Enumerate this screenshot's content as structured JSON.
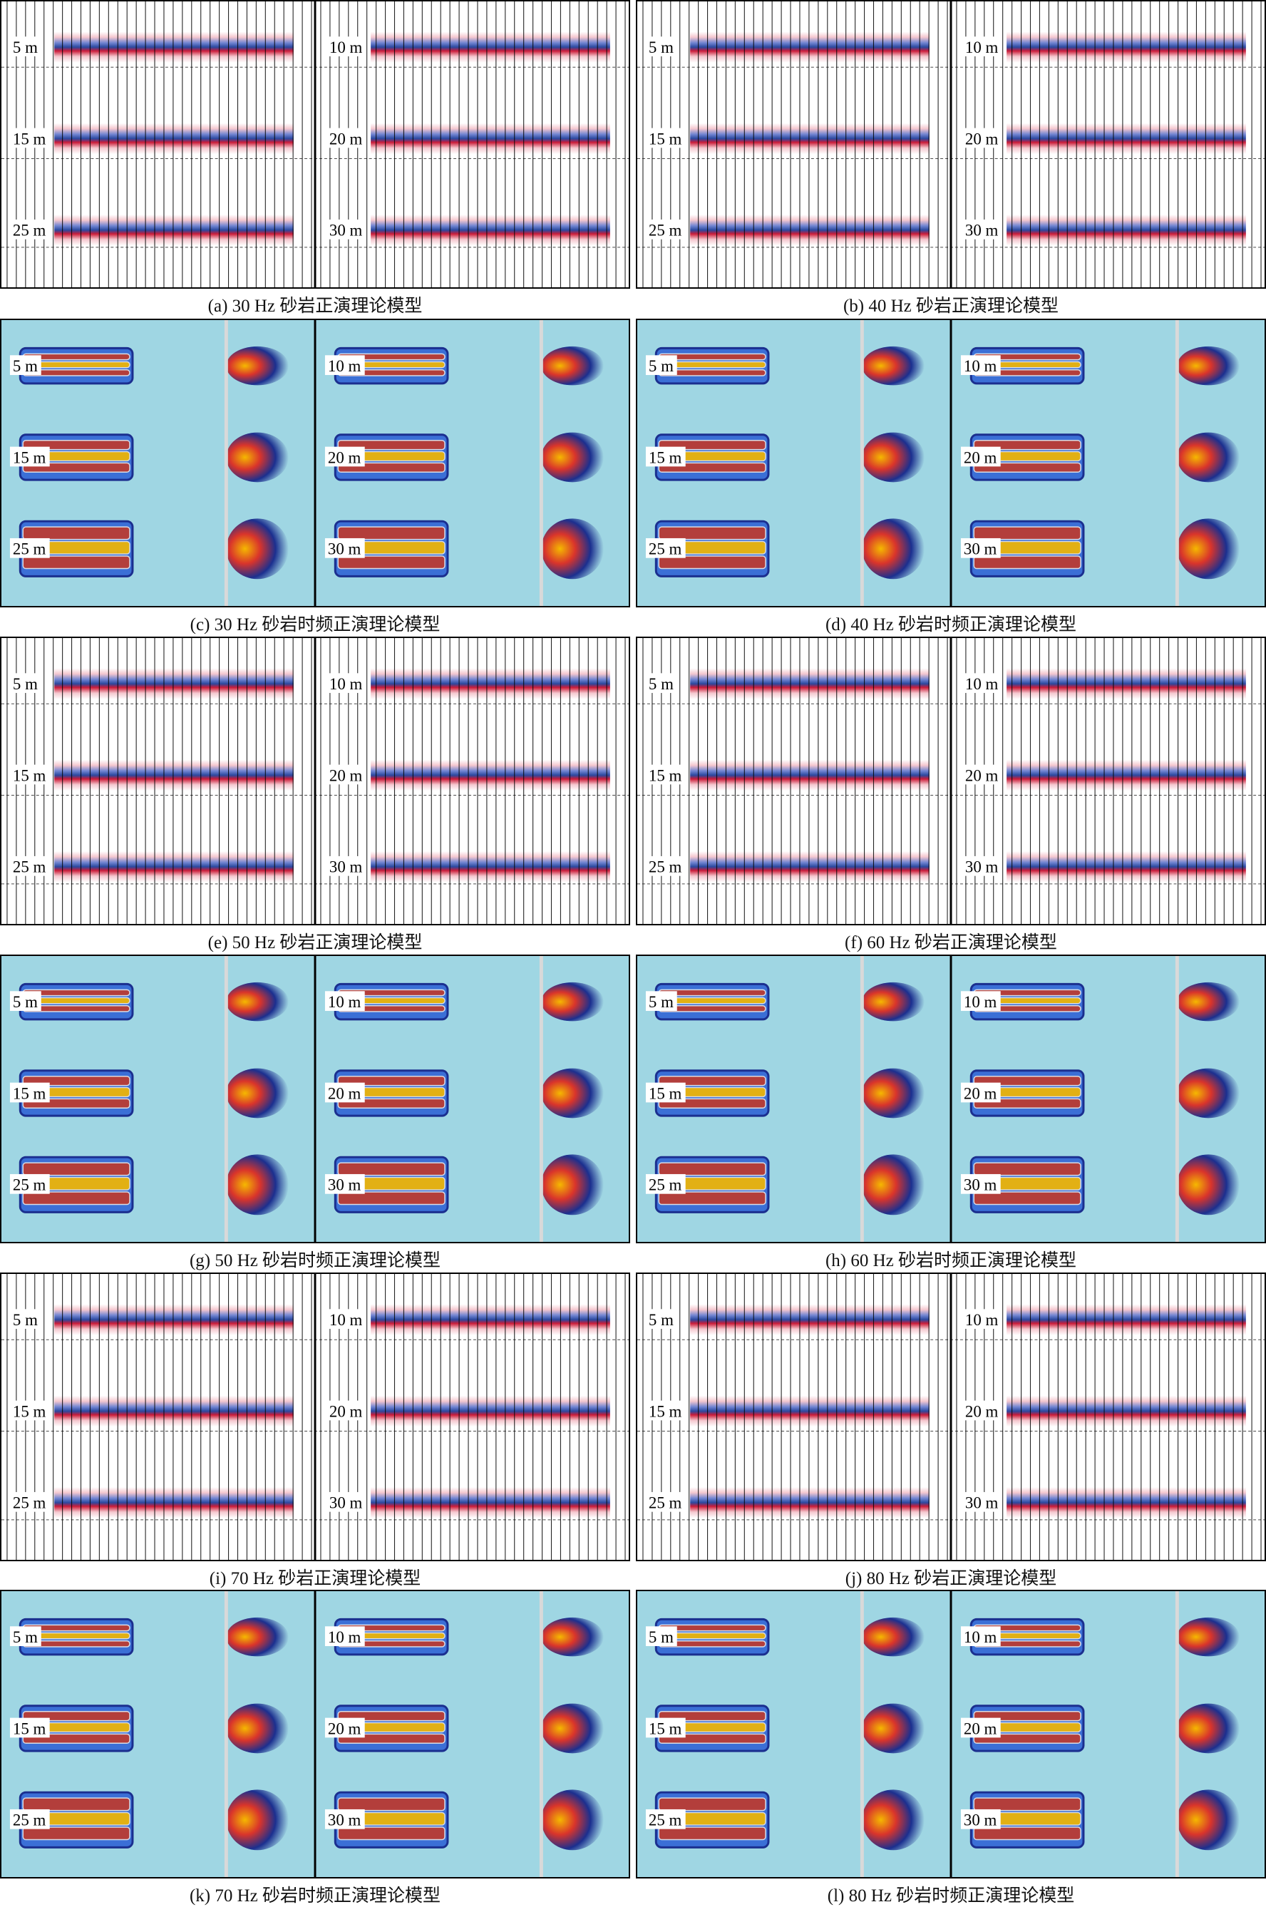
{
  "panels": [
    {
      "id": "a",
      "kind": "seismic",
      "caption": "(a) 30 Hz 砂岩正演理论模型",
      "left_labels": [
        "5 m",
        "15 m",
        "25 m"
      ],
      "right_labels": [
        "10 m",
        "20 m",
        "30 m"
      ]
    },
    {
      "id": "b",
      "kind": "seismic",
      "caption": "(b) 40 Hz 砂岩正演理论模型",
      "left_labels": [
        "5 m",
        "15 m",
        "25 m"
      ],
      "right_labels": [
        "10 m",
        "20 m",
        "30 m"
      ]
    },
    {
      "id": "c",
      "kind": "tf",
      "caption": "(c) 30 Hz 砂岩时频正演理论模型",
      "left_labels": [
        "5 m",
        "15 m",
        "25 m"
      ],
      "right_labels": [
        "10 m",
        "20 m",
        "30 m"
      ]
    },
    {
      "id": "d",
      "kind": "tf",
      "caption": "(d) 40 Hz 砂岩时频正演理论模型",
      "left_labels": [
        "5 m",
        "15 m",
        "25 m"
      ],
      "right_labels": [
        "10 m",
        "20 m",
        "30 m"
      ]
    },
    {
      "id": "e",
      "kind": "seismic",
      "caption": "(e) 50 Hz 砂岩正演理论模型",
      "left_labels": [
        "5 m",
        "15 m",
        "25 m"
      ],
      "right_labels": [
        "10 m",
        "20 m",
        "30 m"
      ]
    },
    {
      "id": "f",
      "kind": "seismic",
      "caption": "(f) 60 Hz 砂岩正演理论模型",
      "left_labels": [
        "5 m",
        "15 m",
        "25 m"
      ],
      "right_labels": [
        "10 m",
        "20 m",
        "30 m"
      ]
    },
    {
      "id": "g",
      "kind": "tf",
      "caption": "(g) 50 Hz 砂岩时频正演理论模型",
      "left_labels": [
        "5 m",
        "15 m",
        "25 m"
      ],
      "right_labels": [
        "10 m",
        "20 m",
        "30 m"
      ]
    },
    {
      "id": "h",
      "kind": "tf",
      "caption": "(h) 60 Hz 砂岩时频正演理论模型",
      "left_labels": [
        "5 m",
        "15 m",
        "25 m"
      ],
      "right_labels": [
        "10 m",
        "20 m",
        "30 m"
      ]
    },
    {
      "id": "i",
      "kind": "seismic",
      "caption": "(i) 70 Hz 砂岩正演理论模型",
      "left_labels": [
        "5 m",
        "15 m",
        "25 m"
      ],
      "right_labels": [
        "10 m",
        "20 m",
        "30 m"
      ]
    },
    {
      "id": "j",
      "kind": "seismic",
      "caption": "(j) 80 Hz 砂岩正演理论模型",
      "left_labels": [
        "5 m",
        "15 m",
        "25 m"
      ],
      "right_labels": [
        "10 m",
        "20 m",
        "30 m"
      ]
    },
    {
      "id": "k",
      "kind": "tf",
      "caption": "(k) 70 Hz 砂岩时频正演理论模型",
      "left_labels": [
        "5 m",
        "15 m",
        "25 m"
      ],
      "right_labels": [
        "10 m",
        "20 m",
        "30 m"
      ]
    },
    {
      "id": "l",
      "kind": "tf",
      "caption": "(l) 80 Hz 砂岩时频正演理论模型",
      "left_labels": [
        "5 m",
        "15 m",
        "25 m"
      ],
      "right_labels": [
        "10 m",
        "20 m",
        "30 m"
      ]
    }
  ],
  "colors": {
    "trough": "#1f3f9a",
    "peak": "#c8102e",
    "tf_background": "#9fd6e3",
    "tf_core": "#f5b800",
    "tf_edge": "#1b2f8f"
  }
}
